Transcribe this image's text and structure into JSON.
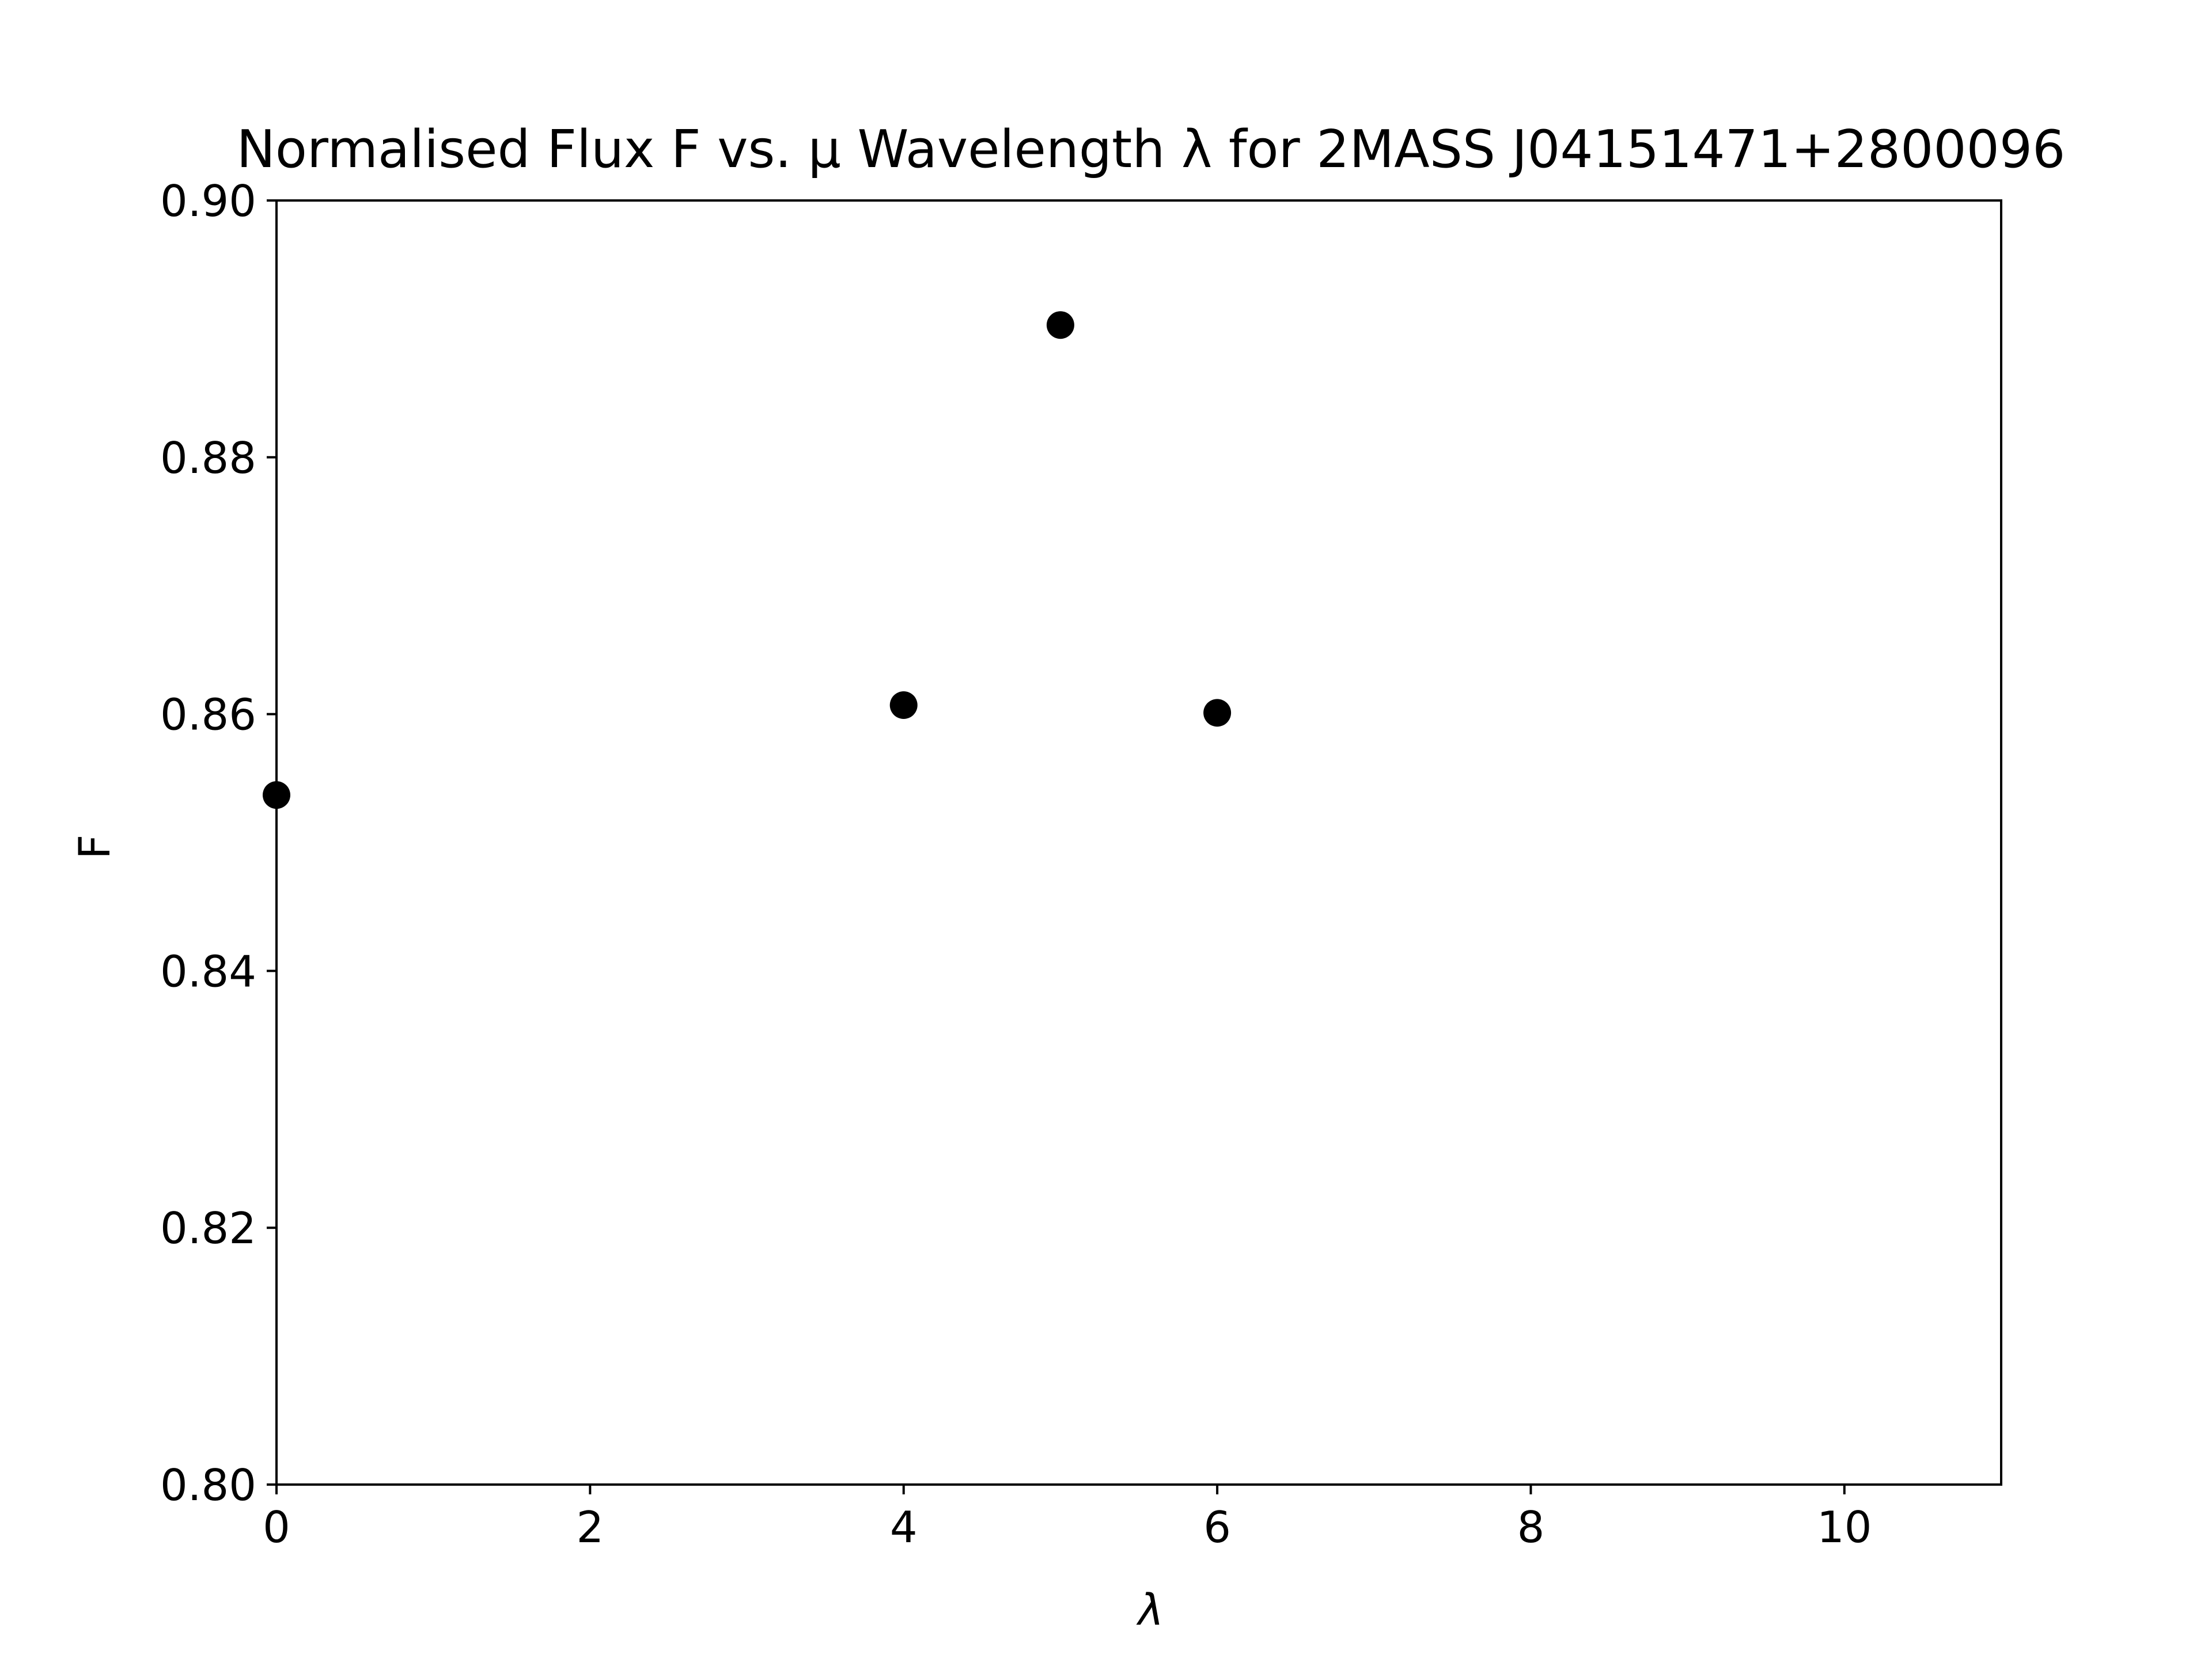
{
  "chart_data": {
    "type": "scatter",
    "title": "Normalised Flux F vs. μ Wavelength λ for 2MASS J04151471+2800096",
    "xlabel": "λ",
    "ylabel": "F",
    "xlim": [
      0,
      11
    ],
    "ylim": [
      0.8,
      0.9
    ],
    "xticks": [
      0,
      2,
      4,
      6,
      8,
      10
    ],
    "xtick_labels": [
      "0",
      "2",
      "4",
      "6",
      "8",
      "10"
    ],
    "yticks": [
      0.8,
      0.82,
      0.84,
      0.86,
      0.88,
      0.9
    ],
    "ytick_labels": [
      "0.80",
      "0.82",
      "0.84",
      "0.86",
      "0.88",
      "0.90"
    ],
    "grid": false,
    "legend": false,
    "series": [
      {
        "color": "#000000",
        "marker": "circle",
        "points": [
          {
            "x": 0,
            "y": 0.8537
          },
          {
            "x": 4,
            "y": 0.8607
          },
          {
            "x": 5,
            "y": 0.8903
          },
          {
            "x": 6,
            "y": 0.8601
          }
        ]
      }
    ]
  }
}
